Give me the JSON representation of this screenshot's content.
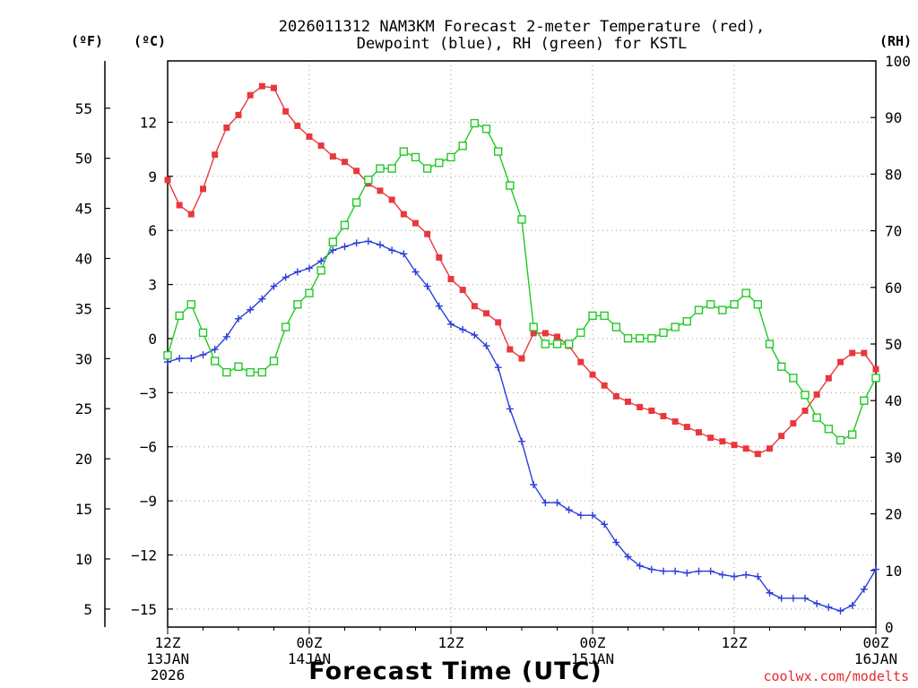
{
  "title_line1": "2026011312 NAM3KM Forecast 2-meter Temperature (red),",
  "title_line2": "Dewpoint (blue), RH (green) for KSTL",
  "credit": "coolwx.com/modelts",
  "colors": {
    "temperature": "#e8383d",
    "dewpoint": "#2b3fd6",
    "rh": "#22c925",
    "grid": "#999999",
    "credit": "#e8282d"
  },
  "chart_data": {
    "type": "line",
    "title": "2026011312 NAM3KM Forecast 2-meter Temperature (red), Dewpoint (blue), RH (green) for KSTL",
    "xlabel": "Forecast Time (UTC)",
    "x_hours": [
      0,
      1,
      2,
      3,
      4,
      5,
      6,
      7,
      8,
      9,
      10,
      11,
      12,
      13,
      14,
      15,
      16,
      17,
      18,
      19,
      20,
      21,
      22,
      23,
      24,
      25,
      26,
      27,
      28,
      29,
      30,
      31,
      32,
      33,
      34,
      35,
      36,
      37,
      38,
      39,
      40,
      41,
      42,
      43,
      44,
      45,
      46,
      47,
      48,
      49,
      50,
      51,
      52,
      53,
      54,
      55,
      56,
      57,
      58,
      59,
      60
    ],
    "x_range": [
      0,
      60
    ],
    "x_ticks": [
      {
        "hour": 0,
        "line1": "12Z",
        "line2": "13JAN",
        "line3": "2026"
      },
      {
        "hour": 12,
        "line1": "00Z",
        "line2": "14JAN",
        "line3": ""
      },
      {
        "hour": 24,
        "line1": "12Z",
        "line2": "",
        "line3": ""
      },
      {
        "hour": 36,
        "line1": "00Z",
        "line2": "15JAN",
        "line3": ""
      },
      {
        "hour": 48,
        "line1": "12Z",
        "line2": "",
        "line3": ""
      },
      {
        "hour": 60,
        "line1": "00Z",
        "line2": "16JAN",
        "line3": ""
      }
    ],
    "axes": {
      "celsius": {
        "label": "(ºC)",
        "range": [
          -16,
          15.4
        ],
        "ticks": [
          -15,
          -12,
          -9,
          -6,
          -3,
          0,
          3,
          6,
          9,
          12
        ]
      },
      "fahrenheit": {
        "label": "(ºF)",
        "ticks": [
          5,
          10,
          15,
          20,
          25,
          30,
          35,
          40,
          45,
          50,
          55
        ]
      },
      "rh": {
        "label": "(RH)",
        "range": [
          0,
          100
        ],
        "ticks": [
          0,
          10,
          20,
          30,
          40,
          50,
          60,
          70,
          80,
          90,
          100
        ]
      }
    },
    "series": [
      {
        "name": "Temperature",
        "units": "C",
        "values": [
          8.8,
          7.4,
          6.9,
          8.3,
          10.2,
          11.7,
          12.4,
          13.5,
          14.0,
          13.9,
          12.6,
          11.8,
          11.2,
          10.7,
          10.1,
          9.8,
          9.3,
          8.6,
          8.2,
          7.7,
          6.9,
          6.4,
          5.8,
          4.5,
          3.3,
          2.7,
          1.8,
          1.4,
          0.9,
          -0.6,
          -1.1,
          0.3,
          0.3,
          0.1,
          -0.4,
          -1.3,
          -2.0,
          -2.6,
          -3.2,
          -3.5,
          -3.8,
          -4.0,
          -4.3,
          -4.6,
          -4.9,
          -5.2,
          -5.5,
          -5.7,
          -5.9,
          -6.1,
          -6.4,
          -6.1,
          -5.4,
          -4.7,
          -4.0,
          -3.1,
          -2.2,
          -1.3,
          -0.8,
          -0.8,
          -1.7
        ],
        "temperature_axis_ticks_note": ""
      },
      {
        "name": "Dewpoint",
        "units": "C",
        "values": [
          -1.3,
          -1.1,
          -1.1,
          -0.9,
          -0.6,
          0.1,
          1.1,
          1.6,
          2.2,
          2.9,
          3.4,
          3.7,
          3.9,
          4.3,
          4.9,
          5.1,
          5.3,
          5.4,
          5.2,
          4.9,
          4.7,
          3.7,
          2.9,
          1.8,
          0.8,
          0.5,
          0.2,
          -0.4,
          -1.6,
          -3.9,
          -5.7,
          -8.1,
          -9.1,
          -9.1,
          -9.5,
          -9.8,
          -9.8,
          -10.3,
          -11.3,
          -12.1,
          -12.6,
          -12.8,
          -12.9,
          -12.9,
          -13.0,
          -12.9,
          -12.9,
          -13.1,
          -13.2,
          -13.1,
          -13.2,
          -14.1,
          -14.4,
          -14.4,
          -14.4,
          -14.7,
          -14.9,
          -15.1,
          -14.8,
          -13.9,
          -12.8
        ]
      },
      {
        "name": "RH",
        "units": "%",
        "values": [
          48,
          55,
          57,
          52,
          47,
          45,
          46,
          45,
          45,
          47,
          53,
          57,
          59,
          63,
          68,
          71,
          75,
          79,
          81,
          81,
          84,
          83,
          81,
          82,
          83,
          85,
          89,
          88,
          84,
          78,
          72,
          53,
          50,
          50,
          50,
          52,
          55,
          55,
          53,
          51,
          51,
          51,
          52,
          53,
          54,
          56,
          57,
          56,
          57,
          59,
          57,
          50,
          46,
          44,
          41,
          37,
          35,
          33,
          34,
          40,
          44
        ]
      }
    ]
  }
}
